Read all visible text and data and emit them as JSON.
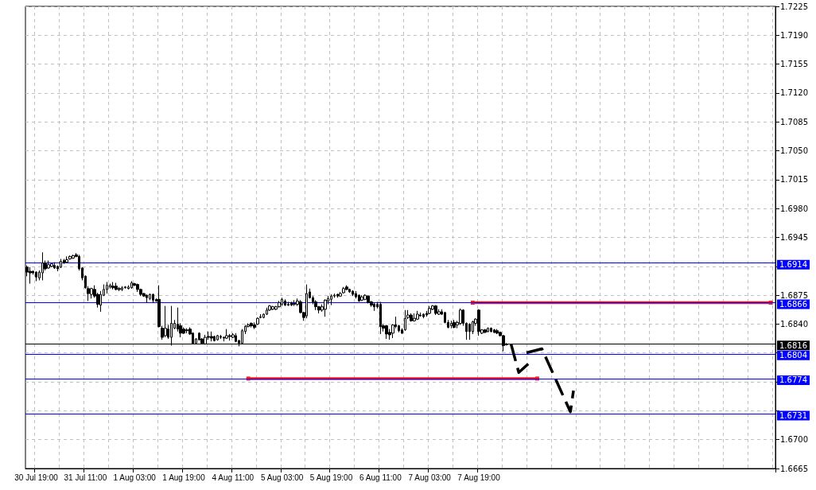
{
  "chart_data": {
    "type": "candlestick",
    "color": "#000000",
    "categories": [
      null,
      null,
      null,
      "30 Jul 19:00",
      null,
      null,
      null,
      null,
      null,
      null,
      null,
      null,
      null,
      null,
      null,
      null,
      null,
      null,
      null,
      "31 Jul 11:00",
      null,
      null,
      null,
      null,
      null,
      null,
      null,
      null,
      null,
      null,
      null,
      null,
      null,
      null,
      null,
      "1 Aug 03:00",
      null,
      null,
      null,
      null,
      null,
      null,
      null,
      null,
      null,
      null,
      null,
      null,
      null,
      null,
      null,
      "1 Aug 19:00",
      null,
      null,
      null,
      null,
      null,
      null,
      null,
      null,
      null,
      null,
      null,
      null,
      null,
      null,
      null,
      "4 Aug 11:00",
      null,
      null,
      null,
      null,
      null,
      null,
      null,
      null,
      null,
      null,
      null,
      null,
      null,
      null,
      null,
      "5 Aug 03:00",
      null,
      null,
      null,
      null,
      null,
      null,
      null,
      null,
      null,
      null,
      null,
      null,
      null,
      null,
      null,
      "5 Aug 19:00",
      null,
      null,
      null,
      null,
      null,
      null,
      null,
      null,
      null,
      null,
      null,
      null,
      null,
      null,
      null,
      "6 Aug 11:00",
      null,
      null,
      null,
      null,
      null,
      null,
      null,
      null,
      null,
      null,
      null,
      null,
      null,
      null,
      null,
      "7 Aug 03:00",
      null,
      null,
      null,
      null,
      null,
      null,
      null,
      null,
      null,
      null,
      null,
      null,
      null,
      null,
      null,
      "7 Aug 19:00",
      null,
      null,
      null,
      null,
      null,
      null,
      null,
      null,
      null,
      null,
      null,
      null,
      null,
      null,
      null,
      null,
      null,
      null,
      null,
      null,
      null,
      null,
      null,
      null,
      null,
      null,
      null,
      null,
      null,
      null,
      null,
      null,
      null,
      null,
      null,
      null,
      null,
      null,
      null,
      null,
      null,
      null,
      null,
      null,
      null,
      null,
      null,
      null,
      null,
      null,
      null,
      null,
      null,
      null,
      null,
      null,
      null,
      null,
      null,
      null,
      null,
      null,
      null,
      null,
      null,
      null,
      null,
      null,
      null,
      null,
      null,
      null,
      null,
      null,
      null,
      null,
      null,
      null,
      null,
      null,
      null,
      null,
      null,
      null,
      null,
      null,
      null,
      null,
      null,
      null,
      null,
      null,
      null,
      null,
      null,
      null
    ],
    "ohlc": [
      [
        1.6909,
        1.6911,
        1.6898,
        1.6903
      ],
      [
        1.6904,
        1.6909,
        1.6889,
        1.6902
      ],
      [
        1.6904,
        1.6905,
        1.69,
        1.6902
      ],
      [
        1.6903,
        1.6904,
        1.6892,
        1.6897
      ],
      [
        1.6896,
        1.6905,
        1.6893,
        1.6903
      ],
      [
        1.6902,
        1.6927,
        1.6893,
        1.6914
      ],
      [
        1.6914,
        1.6917,
        1.6905,
        1.6907
      ],
      [
        1.6908,
        1.6917,
        1.6907,
        1.6912
      ],
      [
        1.691,
        1.6914,
        1.6909,
        1.6913
      ],
      [
        1.6911,
        1.6915,
        1.6907,
        1.6908
      ],
      [
        1.691,
        1.6911,
        1.6904,
        1.6907
      ],
      [
        1.6909,
        1.6919,
        1.6908,
        1.6916
      ],
      [
        1.6917,
        1.6919,
        1.6913,
        1.6914
      ],
      [
        1.6915,
        1.6922,
        1.6914,
        1.6918
      ],
      [
        1.6919,
        1.6923,
        1.6918,
        1.6922
      ],
      [
        1.692,
        1.6924,
        1.6919,
        1.6923
      ],
      [
        1.6924,
        1.6926,
        1.6921,
        1.6922
      ],
      [
        1.6922,
        1.6924,
        1.6905,
        1.6907
      ],
      [
        1.6908,
        1.6909,
        1.6893,
        1.6896
      ],
      [
        1.6898,
        1.6899,
        1.6883,
        1.6884
      ],
      [
        1.6883,
        1.6886,
        1.6868,
        1.6877
      ],
      [
        1.6876,
        1.6884,
        1.6871,
        1.6883
      ],
      [
        1.6882,
        1.6887,
        1.6872,
        1.6874
      ],
      [
        1.6876,
        1.6878,
        1.686,
        1.6864
      ],
      [
        1.6863,
        1.688,
        1.6855,
        1.6876
      ],
      [
        1.6875,
        1.6888,
        1.6874,
        1.6882
      ],
      [
        1.6882,
        1.6891,
        1.6877,
        1.6887
      ],
      [
        1.6885,
        1.6889,
        1.6883,
        1.6887
      ],
      [
        1.6886,
        1.6891,
        1.6882,
        1.6884
      ],
      [
        1.6886,
        1.689,
        1.6881,
        1.6882
      ],
      [
        1.6883,
        1.6885,
        1.688,
        1.6882
      ],
      [
        1.6882,
        1.6886,
        1.688,
        1.6884
      ],
      [
        1.6885,
        1.6886,
        1.6883,
        1.6884
      ],
      [
        1.6883,
        1.6887,
        1.6882,
        1.6885
      ],
      [
        1.6884,
        1.6892,
        1.6883,
        1.689
      ],
      [
        1.6889,
        1.689,
        1.6886,
        1.6887
      ],
      [
        1.6888,
        1.6889,
        1.6879,
        1.6882
      ],
      [
        1.6882,
        1.6883,
        1.6874,
        1.6876
      ],
      [
        1.6877,
        1.6878,
        1.6873,
        1.6874
      ],
      [
        1.6875,
        1.6876,
        1.6866,
        1.6872
      ],
      [
        1.6871,
        1.6877,
        1.6869,
        1.6876
      ],
      [
        1.6876,
        1.6877,
        1.6866,
        1.6869
      ],
      [
        1.687,
        1.6871,
        1.6867,
        1.6868
      ],
      [
        1.687,
        1.6887,
        1.6836,
        1.6837
      ],
      [
        1.6835,
        1.6838,
        1.6821,
        1.6824
      ],
      [
        1.6826,
        1.6862,
        1.6824,
        1.6835
      ],
      [
        1.6834,
        1.6839,
        1.6822,
        1.6824
      ],
      [
        1.6824,
        1.6862,
        1.6814,
        1.6841
      ],
      [
        1.6835,
        1.6845,
        1.6834,
        1.6841
      ],
      [
        1.684,
        1.686,
        1.6831,
        1.6834
      ],
      [
        1.6838,
        1.6841,
        1.6824,
        1.6829
      ],
      [
        1.6834,
        1.6836,
        1.6828,
        1.6829
      ],
      [
        1.6833,
        1.6835,
        1.6829,
        1.6832
      ],
      [
        1.6834,
        1.6836,
        1.6827,
        1.6828
      ],
      [
        1.6829,
        1.683,
        1.6816,
        1.6816
      ],
      [
        1.6817,
        1.6823,
        1.6816,
        1.6822
      ],
      [
        1.6829,
        1.683,
        1.682,
        1.6821
      ],
      [
        1.6822,
        1.6823,
        1.6816,
        1.6817
      ],
      [
        1.6816,
        1.6827,
        1.6815,
        1.6824
      ],
      [
        1.6825,
        1.6831,
        1.6821,
        1.6824
      ],
      [
        1.6825,
        1.6831,
        1.6819,
        1.6823
      ],
      [
        1.6825,
        1.6826,
        1.6819,
        1.682
      ],
      [
        1.6821,
        1.6827,
        1.682,
        1.6826
      ],
      [
        1.6825,
        1.6827,
        1.6822,
        1.6824
      ],
      [
        1.6824,
        1.6825,
        1.6819,
        1.6823
      ],
      [
        1.6823,
        1.6834,
        1.6822,
        1.6826
      ],
      [
        1.6826,
        1.6828,
        1.682,
        1.6825
      ],
      [
        1.6824,
        1.6829,
        1.6823,
        1.6827
      ],
      [
        1.6826,
        1.6829,
        1.6818,
        1.6819
      ],
      [
        1.682,
        1.6821,
        1.6813,
        1.6817
      ],
      [
        1.6817,
        1.6834,
        1.6816,
        1.6832
      ],
      [
        1.6831,
        1.6839,
        1.6828,
        1.6837
      ],
      [
        1.6837,
        1.6841,
        1.6836,
        1.6839
      ],
      [
        1.6841,
        1.6842,
        1.6836,
        1.6838
      ],
      [
        1.6839,
        1.6842,
        1.6834,
        1.6836
      ],
      [
        1.684,
        1.6848,
        1.6839,
        1.6847
      ],
      [
        1.6848,
        1.6852,
        1.6847,
        1.6849
      ],
      [
        1.6848,
        1.6853,
        1.6847,
        1.6852
      ],
      [
        1.6852,
        1.686,
        1.6851,
        1.6857
      ],
      [
        1.6857,
        1.6863,
        1.6856,
        1.6862
      ],
      [
        1.6858,
        1.6862,
        1.6857,
        1.6861
      ],
      [
        1.6858,
        1.6862,
        1.6857,
        1.6861
      ],
      [
        1.6861,
        1.6868,
        1.686,
        1.6866
      ],
      [
        1.6864,
        1.6872,
        1.6862,
        1.687
      ],
      [
        1.6868,
        1.687,
        1.6862,
        1.6863
      ],
      [
        1.6864,
        1.6867,
        1.6862,
        1.6863
      ],
      [
        1.6866,
        1.6867,
        1.6862,
        1.6863
      ],
      [
        1.6865,
        1.6869,
        1.6862,
        1.6864
      ],
      [
        1.6864,
        1.6871,
        1.6862,
        1.6868
      ],
      [
        1.6867,
        1.6869,
        1.6853,
        1.6854
      ],
      [
        1.6854,
        1.6855,
        1.6844,
        1.6848
      ],
      [
        1.685,
        1.6888,
        1.6847,
        1.6877
      ],
      [
        1.6879,
        1.6883,
        1.6871,
        1.6872
      ],
      [
        1.6872,
        1.6874,
        1.6864,
        1.6867
      ],
      [
        1.6867,
        1.6869,
        1.6857,
        1.6861
      ],
      [
        1.6861,
        1.6862,
        1.6853,
        1.6857
      ],
      [
        1.6857,
        1.6864,
        1.6855,
        1.6861
      ],
      [
        1.6858,
        1.687,
        1.6849,
        1.6869
      ],
      [
        1.6868,
        1.6874,
        1.6864,
        1.6871
      ],
      [
        1.687,
        1.6876,
        1.6863,
        1.6874
      ],
      [
        1.6874,
        1.6877,
        1.6872,
        1.6875
      ],
      [
        1.6876,
        1.6877,
        1.6872,
        1.6874
      ],
      [
        1.6874,
        1.6879,
        1.6873,
        1.6877
      ],
      [
        1.6878,
        1.6885,
        1.6877,
        1.6883
      ],
      [
        1.6885,
        1.6887,
        1.6881,
        1.6882
      ],
      [
        1.6882,
        1.6883,
        1.6878,
        1.6879
      ],
      [
        1.688,
        1.6881,
        1.6874,
        1.6876
      ],
      [
        1.6877,
        1.688,
        1.6871,
        1.6873
      ],
      [
        1.6875,
        1.6876,
        1.6867,
        1.6868
      ],
      [
        1.6869,
        1.6875,
        1.6868,
        1.6873
      ],
      [
        1.687,
        1.6876,
        1.6869,
        1.6875
      ],
      [
        1.6874,
        1.6875,
        1.6865,
        1.6866
      ],
      [
        1.6867,
        1.6868,
        1.6861,
        1.6863
      ],
      [
        1.6864,
        1.6866,
        1.6856,
        1.6861
      ],
      [
        1.6864,
        1.6867,
        1.6859,
        1.6861
      ],
      [
        1.6864,
        1.6867,
        1.6828,
        1.6837
      ],
      [
        1.6838,
        1.684,
        1.6831,
        1.6835
      ],
      [
        1.6838,
        1.6839,
        1.6822,
        1.6828
      ],
      [
        1.683,
        1.6834,
        1.6821,
        1.6827
      ],
      [
        1.6829,
        1.684,
        1.6823,
        1.6839
      ],
      [
        1.6839,
        1.6849,
        1.6835,
        1.6837
      ],
      [
        1.6838,
        1.6839,
        1.683,
        1.6832
      ],
      [
        1.6833,
        1.6835,
        1.6828,
        1.6829
      ],
      [
        1.6833,
        1.6857,
        1.6832,
        1.6847
      ],
      [
        1.6848,
        1.6857,
        1.6846,
        1.6851
      ],
      [
        1.6851,
        1.6853,
        1.6843,
        1.6844
      ],
      [
        1.6844,
        1.6853,
        1.6843,
        1.6847
      ],
      [
        1.6846,
        1.6856,
        1.6845,
        1.6852
      ],
      [
        1.6851,
        1.6854,
        1.6849,
        1.685
      ],
      [
        1.6852,
        1.6853,
        1.6847,
        1.6849
      ],
      [
        1.6853,
        1.6856,
        1.6849,
        1.6851
      ],
      [
        1.6853,
        1.6862,
        1.6852,
        1.6859
      ],
      [
        1.6858,
        1.6863,
        1.6857,
        1.6862
      ],
      [
        1.6862,
        1.6863,
        1.6851,
        1.6853
      ],
      [
        1.6852,
        1.6858,
        1.6851,
        1.6855
      ],
      [
        1.6855,
        1.6858,
        1.6851,
        1.6852
      ],
      [
        1.6854,
        1.6855,
        1.6841,
        1.6842
      ],
      [
        1.6842,
        1.6845,
        1.6835,
        1.6836
      ],
      [
        1.6838,
        1.6844,
        1.6835,
        1.6841
      ],
      [
        1.6842,
        1.6845,
        1.6835,
        1.6836
      ],
      [
        1.6839,
        1.6844,
        1.6835,
        1.6842
      ],
      [
        1.6841,
        1.6859,
        1.6839,
        1.6857
      ],
      [
        1.6857,
        1.6858,
        1.6838,
        1.6841
      ],
      [
        1.6841,
        1.6842,
        1.6821,
        1.6831
      ],
      [
        1.684,
        1.6841,
        1.6821,
        1.6831
      ],
      [
        1.6831,
        1.6844,
        1.6828,
        1.6843
      ],
      [
        1.6841,
        1.6847,
        1.6838,
        1.6846
      ],
      [
        1.6857,
        1.6858,
        1.6826,
        1.6831
      ],
      [
        1.6829,
        1.6834,
        1.6828,
        1.6833
      ],
      [
        1.6833,
        1.6834,
        1.6829,
        1.683
      ],
      [
        1.6831,
        1.6836,
        1.683,
        1.6835
      ],
      [
        1.6835,
        1.6836,
        1.683,
        1.6831
      ],
      [
        1.6833,
        1.6834,
        1.6829,
        1.683
      ],
      [
        1.6832,
        1.6834,
        1.6828,
        1.6829
      ],
      [
        1.683,
        1.6831,
        1.6825,
        1.6826
      ],
      [
        1.6826,
        1.6827,
        1.6807,
        1.6814
      ],
      [
        1.6815,
        1.6817,
        1.6814,
        1.6816
      ],
      null,
      null,
      null,
      null,
      null,
      null,
      null,
      null,
      null,
      null,
      null,
      null,
      null,
      null,
      null,
      null,
      null,
      null,
      null,
      null,
      null,
      null,
      null,
      null,
      null,
      null,
      null,
      null,
      null,
      null,
      null,
      null,
      null,
      null,
      null,
      null,
      null,
      null,
      null,
      null,
      null,
      null,
      null,
      null,
      null,
      null,
      null,
      null,
      null,
      null,
      null,
      null,
      null,
      null,
      null,
      null,
      null,
      null,
      null,
      null,
      null,
      null,
      null,
      null,
      null,
      null,
      null,
      null,
      null,
      null,
      null,
      null,
      null,
      null,
      null,
      null,
      null,
      null,
      null,
      null,
      null,
      null,
      null,
      null,
      null,
      null,
      null
    ],
    "series": [
      {
        "type": "line",
        "color": "#ee1c24",
        "marker": "square",
        "values": [
          null,
          null,
          null,
          null,
          null,
          null,
          null,
          null,
          null,
          null,
          null,
          null,
          null,
          null,
          null,
          null,
          null,
          null,
          null,
          null,
          null,
          null,
          null,
          null,
          null,
          null,
          null,
          null,
          null,
          null,
          null,
          null,
          null,
          null,
          null,
          null,
          null,
          null,
          null,
          null,
          null,
          null,
          null,
          null,
          null,
          null,
          null,
          null,
          null,
          null,
          null,
          null,
          null,
          null,
          null,
          null,
          null,
          null,
          null,
          null,
          null,
          null,
          null,
          null,
          null,
          null,
          null,
          null,
          null,
          null,
          null,
          null,
          null,
          null,
          null,
          null,
          null,
          null,
          null,
          null,
          null,
          null,
          null,
          null,
          null,
          null,
          null,
          null,
          null,
          null,
          null,
          null,
          null,
          null,
          null,
          null,
          null,
          null,
          null,
          null,
          null,
          null,
          null,
          null,
          null,
          null,
          null,
          null,
          null,
          null,
          null,
          null,
          null,
          null,
          null,
          null,
          null,
          null,
          null,
          null,
          null,
          null,
          null,
          null,
          null,
          null,
          null,
          null,
          null,
          null,
          null,
          null,
          null,
          null,
          null,
          null,
          null,
          null,
          null,
          null,
          null,
          null,
          null,
          null,
          null,
          1.6866,
          null,
          null,
          null,
          null,
          null,
          null,
          null,
          null,
          null,
          null,
          null,
          null,
          null,
          null,
          null,
          null,
          null,
          null,
          null,
          null,
          null,
          null,
          null,
          null,
          null,
          null,
          null,
          null,
          null,
          null,
          null,
          null,
          null,
          null,
          null,
          null,
          null,
          null,
          null,
          null,
          null,
          null,
          null,
          null,
          null,
          null,
          null,
          null,
          null,
          null,
          null,
          null,
          null,
          null,
          null,
          null,
          null,
          null,
          null,
          null,
          null,
          null,
          null,
          null,
          null,
          null,
          null,
          null,
          null,
          null,
          null,
          null,
          null,
          null,
          null,
          null,
          null,
          null,
          null,
          null,
          null,
          null,
          null,
          null,
          null,
          null,
          null,
          null,
          null,
          null,
          null,
          null,
          null,
          null,
          null,
          null,
          1.6866,
          null
        ]
      },
      {
        "type": "line",
        "color": "#ee1c24",
        "marker": "square",
        "values": [
          null,
          null,
          null,
          null,
          null,
          null,
          null,
          null,
          null,
          null,
          null,
          null,
          null,
          null,
          null,
          null,
          null,
          null,
          null,
          null,
          null,
          null,
          null,
          null,
          null,
          null,
          null,
          null,
          null,
          null,
          null,
          null,
          null,
          null,
          null,
          null,
          null,
          null,
          null,
          null,
          null,
          null,
          null,
          null,
          null,
          null,
          null,
          null,
          null,
          null,
          null,
          null,
          null,
          null,
          null,
          null,
          null,
          null,
          null,
          null,
          null,
          null,
          null,
          null,
          null,
          null,
          null,
          null,
          null,
          null,
          null,
          null,
          1.6774,
          null,
          null,
          null,
          null,
          null,
          null,
          null,
          null,
          null,
          null,
          null,
          null,
          null,
          null,
          null,
          null,
          null,
          null,
          null,
          null,
          null,
          null,
          null,
          null,
          null,
          null,
          null,
          null,
          null,
          null,
          null,
          null,
          null,
          null,
          null,
          null,
          null,
          null,
          null,
          null,
          null,
          null,
          null,
          null,
          null,
          null,
          null,
          null,
          null,
          null,
          null,
          null,
          null,
          null,
          null,
          null,
          null,
          null,
          null,
          null,
          null,
          null,
          null,
          null,
          null,
          null,
          null,
          null,
          null,
          null,
          null,
          null,
          null,
          null,
          null,
          null,
          null,
          null,
          null,
          null,
          null,
          null,
          null,
          null,
          null,
          null,
          null,
          null,
          null,
          null,
          null,
          null,
          null,
          1.6774,
          null,
          null,
          null,
          null,
          null,
          null,
          null,
          null,
          null,
          null,
          null,
          null,
          null,
          null,
          null,
          null,
          null,
          null,
          null,
          null,
          null,
          null,
          null,
          null,
          null,
          null,
          null,
          null,
          null,
          null,
          null,
          null,
          null,
          null,
          null,
          null,
          null,
          null,
          null,
          null,
          null,
          null,
          null,
          null,
          null,
          null,
          null,
          null,
          null,
          null,
          null,
          null,
          null,
          null,
          null,
          null,
          null,
          null,
          null,
          null,
          null,
          null,
          null,
          null,
          null,
          null,
          null,
          null,
          null,
          null,
          null,
          null,
          null,
          null,
          null,
          null,
          null
        ]
      }
    ],
    "ref_lines": [
      {
        "axis": "y",
        "value": 1.6914,
        "label": "1.6914",
        "color": "#0000ff"
      },
      {
        "axis": "y",
        "value": 1.6866,
        "label": "1.6866",
        "color": "#0000ff"
      },
      {
        "axis": "y",
        "value": 1.6816,
        "label": "1.6816",
        "color": "#000000"
      },
      {
        "axis": "y",
        "value": 1.6804,
        "label": "1.6804",
        "color": "#0000ff"
      },
      {
        "axis": "y",
        "value": 1.6774,
        "label": "1.6774",
        "color": "#0000ff"
      },
      {
        "axis": "y",
        "value": 1.6731,
        "label": "1.6731",
        "color": "#0000ff"
      }
    ],
    "ylim": [
      1.6665,
      1.7225
    ],
    "yticks": [
      1.6665,
      {
        "value": 1.67,
        "label": "1.6700"
      },
      {
        "value": 1.6735,
        "label": null
      },
      {
        "value": 1.677,
        "label": null
      },
      {
        "value": 1.6805,
        "label": null
      },
      {
        "value": 1.684,
        "label": "1.6840"
      },
      1.6875,
      {
        "value": 1.691,
        "label": null
      },
      1.6945,
      {
        "value": 1.698,
        "label": "1.6980"
      },
      1.7015,
      {
        "value": 1.705,
        "label": "1.7050"
      },
      1.7085,
      {
        "value": 1.712,
        "label": "1.7120"
      },
      1.7155,
      {
        "value": 1.719,
        "label": "1.7190"
      },
      1.7225
    ],
    "grid": true
  }
}
